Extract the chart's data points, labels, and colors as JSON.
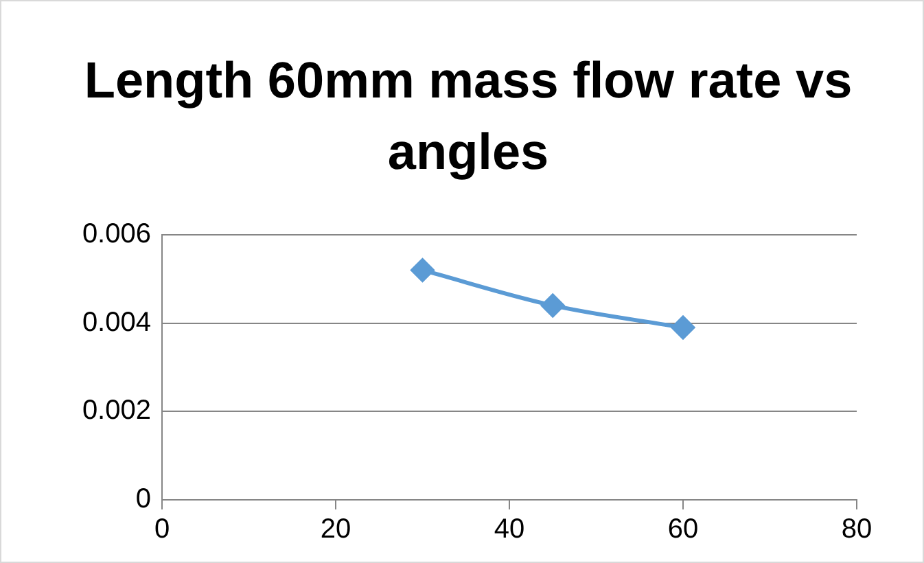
{
  "chart_data": {
    "type": "line",
    "title": "Length 60mm mass flow rate vs angles",
    "x": [
      30,
      45,
      60
    ],
    "series": [
      {
        "color": "#5b9bd5",
        "values": [
          0.0052,
          0.0044,
          0.0039
        ]
      }
    ],
    "xlim": [
      0,
      80
    ],
    "xticks": [
      0,
      20,
      40,
      60,
      80
    ],
    "ylim": [
      0,
      0.006
    ],
    "yticks": [
      {
        "value": 0,
        "label": "0"
      },
      {
        "value": 0.002,
        "label": "0.002"
      },
      {
        "value": 0.004,
        "label": "0.004"
      },
      {
        "value": 0.006,
        "label": "0.006"
      }
    ],
    "grid": "y",
    "legend": false,
    "marker": "diamond",
    "line_style": "solid"
  }
}
